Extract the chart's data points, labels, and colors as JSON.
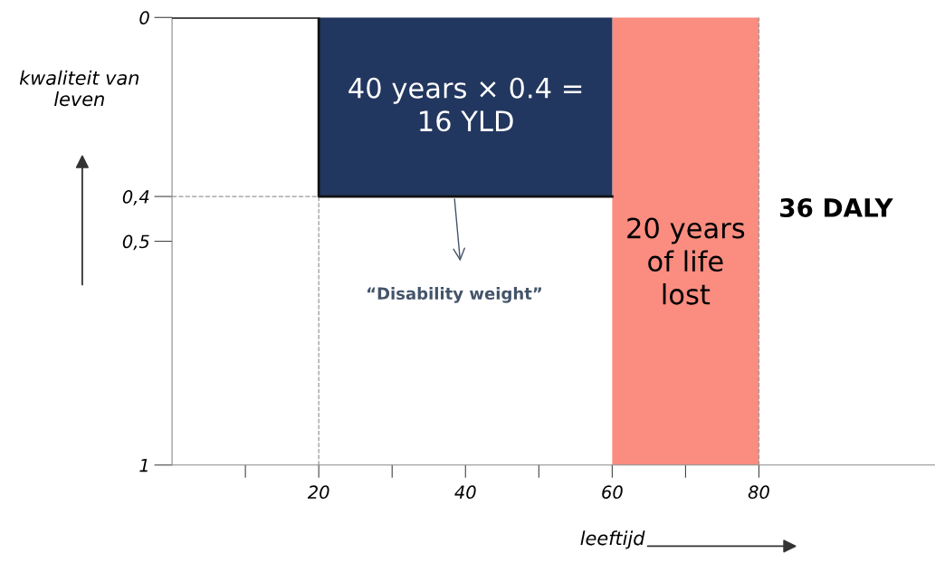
{
  "chart_data": {
    "type": "line",
    "xlabel": "leeftijd",
    "ylabel": "kwaliteit van\nleven",
    "series": [
      {
        "type": "area",
        "color": "#22375f",
        "x": [
          20,
          60
        ],
        "values": [
          0.4,
          0.4
        ]
      },
      {
        "color": "#111111",
        "x": [
          0,
          20,
          20,
          60
        ],
        "values": [
          0,
          0,
          0.4,
          0.4
        ]
      },
      {
        "type": "line",
        "color": "#999999",
        "line_style": "dashed",
        "x": [
          0,
          20
        ],
        "values": [
          0.4,
          0.4
        ]
      }
    ],
    "bands": [
      {
        "axis": "x",
        "from": 60,
        "to": 80,
        "color": "#fa8c80"
      }
    ],
    "ref_lines": [
      {
        "axis": "x",
        "value": 20,
        "color": "#999999",
        "line_style": "dashed"
      },
      {
        "axis": "x",
        "value": 80,
        "color": "#999999",
        "line_style": "dashed"
      }
    ],
    "xlim": [
      0,
      104
    ],
    "ylim": [
      1,
      0
    ],
    "xticks": [
      {
        "value": 10,
        "label": null
      },
      20,
      {
        "value": 30,
        "label": null
      },
      40,
      {
        "value": 50,
        "label": null
      },
      60,
      {
        "value": 70,
        "label": null
      },
      80
    ],
    "yticks": [
      0,
      {
        "value": 0.4,
        "label": "0,4"
      },
      {
        "value": 0.5,
        "label": "0,5"
      },
      1
    ],
    "grid": false,
    "annotations": [
      "40 years × 0.4 =\n16 YLD",
      "20 years\nof life\nlost",
      "36 DALY",
      "“Disability weight”"
    ]
  }
}
